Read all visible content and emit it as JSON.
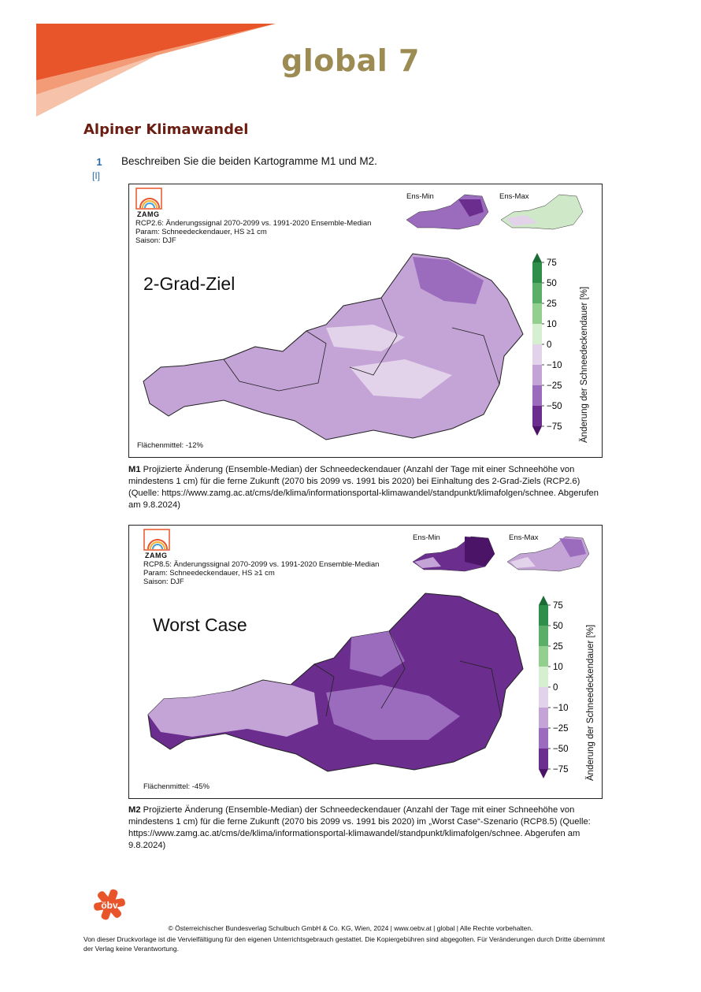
{
  "header": {
    "brand": "global 7"
  },
  "section_title": "Alpiner Klimawandel",
  "task": {
    "number": "1",
    "level": "[I]",
    "text": "Beschreiben Sie die beiden Kartogramme M1 und M2."
  },
  "maps": [
    {
      "logo_text": "ZAMG",
      "meta_line1": "RCP2.6: Änderungssignal 2070-2099 vs. 1991-2020 Ensemble-Median",
      "meta_line2": "Param: Schneedeckendauer, HS ≥1 cm",
      "meta_line3": "Saison: DJF",
      "scenario_label": "2-Grad-Ziel",
      "ens_min": "Ens-Min",
      "ens_max": "Ens-Max",
      "area_mean": "Flächenmittel: -12%",
      "colorbar_ticks": [
        "75",
        "50",
        "25",
        "10",
        "0",
        "−10",
        "−25",
        "−50",
        "−75"
      ],
      "colorbar_label": "Änderung der Schneedeckendauer [%]"
    },
    {
      "logo_text": "ZAMG",
      "meta_line1": "RCP8.5: Änderungssignal 2070-2099 vs. 1991-2020 Ensemble-Median",
      "meta_line2": "Param: Schneedeckendauer, HS ≥1 cm",
      "meta_line3": "Saison: DJF",
      "scenario_label": "Worst Case",
      "ens_min": "Ens-Min",
      "ens_max": "Ens-Max",
      "area_mean": "Flächenmittel: -45%",
      "colorbar_ticks": [
        "75",
        "50",
        "25",
        "10",
        "0",
        "−10",
        "−25",
        "−50",
        "−75"
      ],
      "colorbar_label": "Änderung der Schneedeckendauer [%]"
    }
  ],
  "captions": [
    {
      "label": "M1",
      "text": "Projizierte Änderung (Ensemble-Median) der Schneedeckendauer (Anzahl der Tage mit einer Schneehöhe von mindestens 1 cm) für die ferne Zukunft (2070 bis 2099 vs. 1991 bis 2020) bei Einhaltung des 2-Grad-Ziels (RCP2.6) (Quelle: https://www.zamg.ac.at/cms/de/klima/informationsportal-klimawandel/standpunkt/klimafolgen/schnee. Abgerufen am 9.8.2024)"
    },
    {
      "label": "M2",
      "text": "Projizierte Änderung (Ensemble-Median) der Schneedeckendauer (Anzahl der Tage mit einer Schneehöhe von mindestens 1 cm) für die ferne Zukunft (2070 bis 2099 vs. 1991 bis 2020) im „Worst Case“-Szenario (RCP8.5) (Quelle: https://www.zamg.ac.at/cms/de/klima/informationsportal-klimawandel/standpunkt/klimafolgen/schnee. Abgerufen am 9.8.2024)"
    }
  ],
  "colors": {
    "brand": "#9c8c54",
    "title": "#6b1d12",
    "accent_blue": "#2a6aa8",
    "orange": "#e8552a",
    "colorbar": [
      "#1b6b35",
      "#2f8f4a",
      "#5aae67",
      "#93cf8f",
      "#d6efd0",
      "#e3d3ea",
      "#c4a3d6",
      "#9b6cbd",
      "#6b2e8f",
      "#4b1467"
    ]
  },
  "footer": {
    "logo_text": "öbv",
    "copyright": "© Österreichischer Bundesverlag Schulbuch GmbH & Co. KG, Wien, 2024 | www.oebv.at | global | Alle Rechte vorbehalten.",
    "note": "Von dieser Druckvorlage ist die Vervielfältigung für den eigenen Unterrichtsgebrauch gestattet. Die Kopiergebühren sind abgegolten. Für Veränderungen durch Dritte übernimmt der Verlag keine Verantwortung."
  }
}
